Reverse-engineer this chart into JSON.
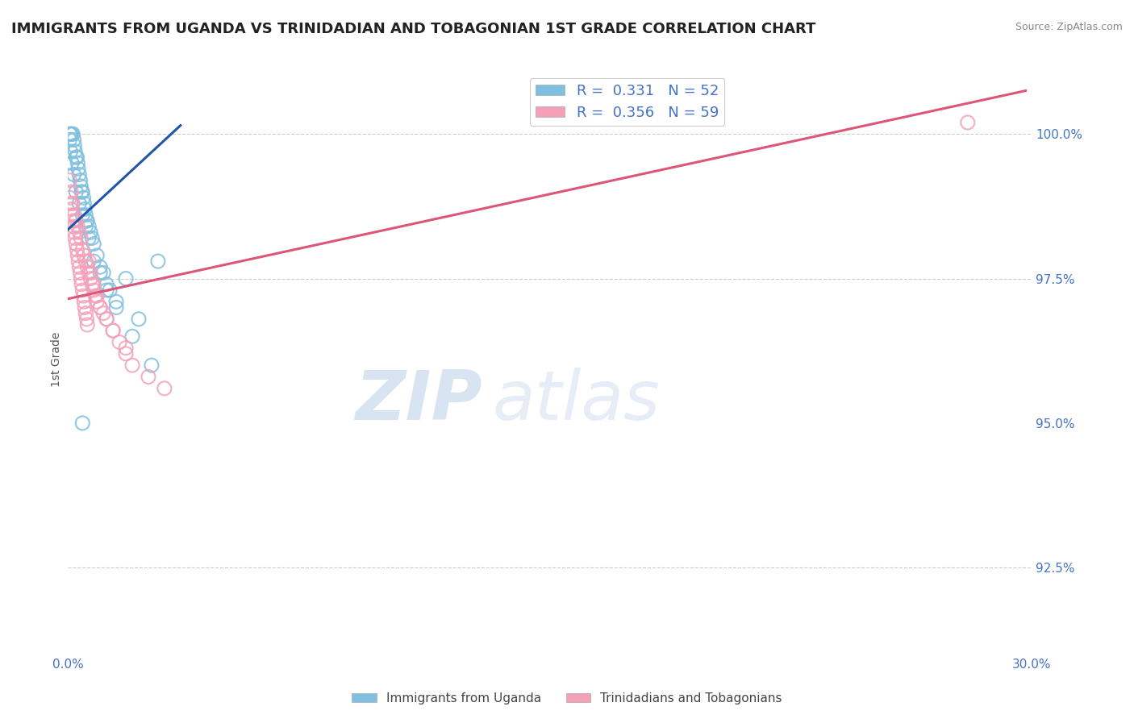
{
  "title": "IMMIGRANTS FROM UGANDA VS TRINIDADIAN AND TOBAGONIAN 1ST GRADE CORRELATION CHART",
  "source": "Source: ZipAtlas.com",
  "ylabel": "1st Grade",
  "xlim": [
    0.0,
    30.0
  ],
  "ylim": [
    91.0,
    101.2
  ],
  "legend_label1": "R =  0.331   N = 52",
  "legend_label2": "R =  0.356   N = 59",
  "legend_xlabel1": "Immigrants from Uganda",
  "legend_xlabel2": "Trinidadians and Tobagonians",
  "color_blue": "#7fbfdf",
  "color_pink": "#f4a0b8",
  "color_blue_line": "#2255aa",
  "color_pink_line": "#dd5577",
  "color_axis_label": "#4472c4",
  "uganda_x": [
    0.05,
    0.08,
    0.1,
    0.12,
    0.15,
    0.18,
    0.2,
    0.22,
    0.25,
    0.28,
    0.3,
    0.32,
    0.35,
    0.38,
    0.4,
    0.42,
    0.45,
    0.48,
    0.5,
    0.52,
    0.55,
    0.58,
    0.6,
    0.65,
    0.7,
    0.75,
    0.8,
    0.9,
    1.0,
    1.1,
    1.2,
    1.3,
    1.5,
    1.8,
    2.2,
    2.8,
    0.05,
    0.08,
    0.12,
    0.18,
    0.25,
    0.35,
    0.45,
    0.55,
    0.65,
    0.8,
    1.0,
    1.2,
    1.5,
    2.0,
    2.6,
    0.45
  ],
  "uganda_y": [
    100.0,
    100.0,
    100.0,
    100.0,
    100.0,
    99.9,
    99.8,
    99.7,
    99.6,
    99.6,
    99.5,
    99.4,
    99.3,
    99.2,
    99.1,
    99.0,
    99.0,
    98.9,
    98.8,
    98.7,
    98.6,
    98.5,
    98.5,
    98.4,
    98.3,
    98.2,
    98.1,
    97.9,
    97.7,
    97.6,
    97.4,
    97.3,
    97.1,
    97.5,
    96.8,
    97.8,
    99.9,
    99.7,
    99.5,
    99.3,
    99.0,
    98.8,
    98.6,
    98.4,
    98.2,
    97.8,
    97.6,
    97.3,
    97.0,
    96.5,
    96.0,
    95.0
  ],
  "trini_x": [
    0.05,
    0.08,
    0.1,
    0.12,
    0.15,
    0.18,
    0.2,
    0.22,
    0.25,
    0.28,
    0.3,
    0.32,
    0.35,
    0.38,
    0.4,
    0.42,
    0.45,
    0.48,
    0.5,
    0.52,
    0.55,
    0.58,
    0.6,
    0.65,
    0.7,
    0.8,
    0.9,
    1.0,
    1.2,
    1.4,
    1.6,
    1.8,
    2.0,
    2.5,
    3.0,
    0.05,
    0.1,
    0.15,
    0.2,
    0.25,
    0.3,
    0.35,
    0.4,
    0.45,
    0.5,
    0.55,
    0.6,
    0.65,
    0.7,
    0.75,
    0.8,
    0.85,
    0.9,
    1.0,
    1.1,
    1.2,
    1.4,
    1.8,
    28.0
  ],
  "trini_y": [
    98.9,
    98.8,
    98.7,
    98.6,
    98.5,
    98.4,
    98.3,
    98.2,
    98.1,
    98.0,
    97.9,
    97.8,
    97.7,
    97.6,
    97.5,
    97.4,
    97.3,
    97.2,
    97.1,
    97.0,
    96.9,
    96.8,
    96.7,
    97.8,
    97.6,
    97.4,
    97.2,
    97.0,
    96.8,
    96.6,
    96.4,
    96.2,
    96.0,
    95.8,
    95.6,
    99.2,
    99.0,
    98.8,
    98.6,
    98.5,
    98.4,
    98.3,
    98.2,
    98.0,
    97.9,
    97.8,
    97.7,
    97.6,
    97.5,
    97.4,
    97.3,
    97.2,
    97.1,
    97.0,
    96.9,
    96.8,
    96.6,
    96.3,
    100.2
  ],
  "watermark_zip": "ZIP",
  "watermark_atlas": "atlas",
  "background_color": "#ffffff",
  "grid_color": "#cccccc",
  "trend_blue_x0": 0.0,
  "trend_blue_x1": 3.5,
  "trend_blue_y0": 98.35,
  "trend_blue_y1": 100.15,
  "trend_pink_x0": 0.0,
  "trend_pink_x1": 29.8,
  "trend_pink_y0": 97.15,
  "trend_pink_y1": 100.75
}
